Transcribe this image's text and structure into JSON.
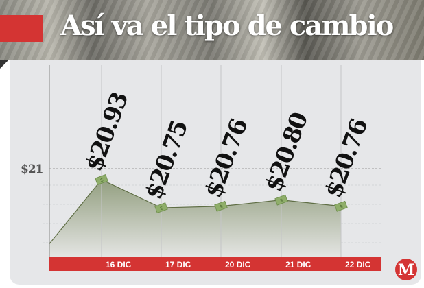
{
  "header": {
    "title": "Así va el tipo de cambio"
  },
  "logo": {
    "letter": "M",
    "color": "#d43433"
  },
  "colors": {
    "accent": "#d43433",
    "area": "#98a486",
    "line": "#5f6e45"
  },
  "chart_data": {
    "type": "area",
    "title": "Así va el tipo de cambio",
    "categories": [
      "",
      "16 DIC",
      "17 DIC",
      "20 DIC",
      "21 DIC",
      "22 DIC"
    ],
    "values": [
      20.52,
      20.93,
      20.75,
      20.76,
      20.8,
      20.76
    ],
    "data_labels": [
      "",
      "$20.93",
      "$20.75",
      "$20.76",
      "$20.80",
      "$20.76"
    ],
    "y_reference": {
      "value": 21,
      "label": "$21"
    },
    "xlabel": "",
    "ylabel": "",
    "grid": true
  }
}
